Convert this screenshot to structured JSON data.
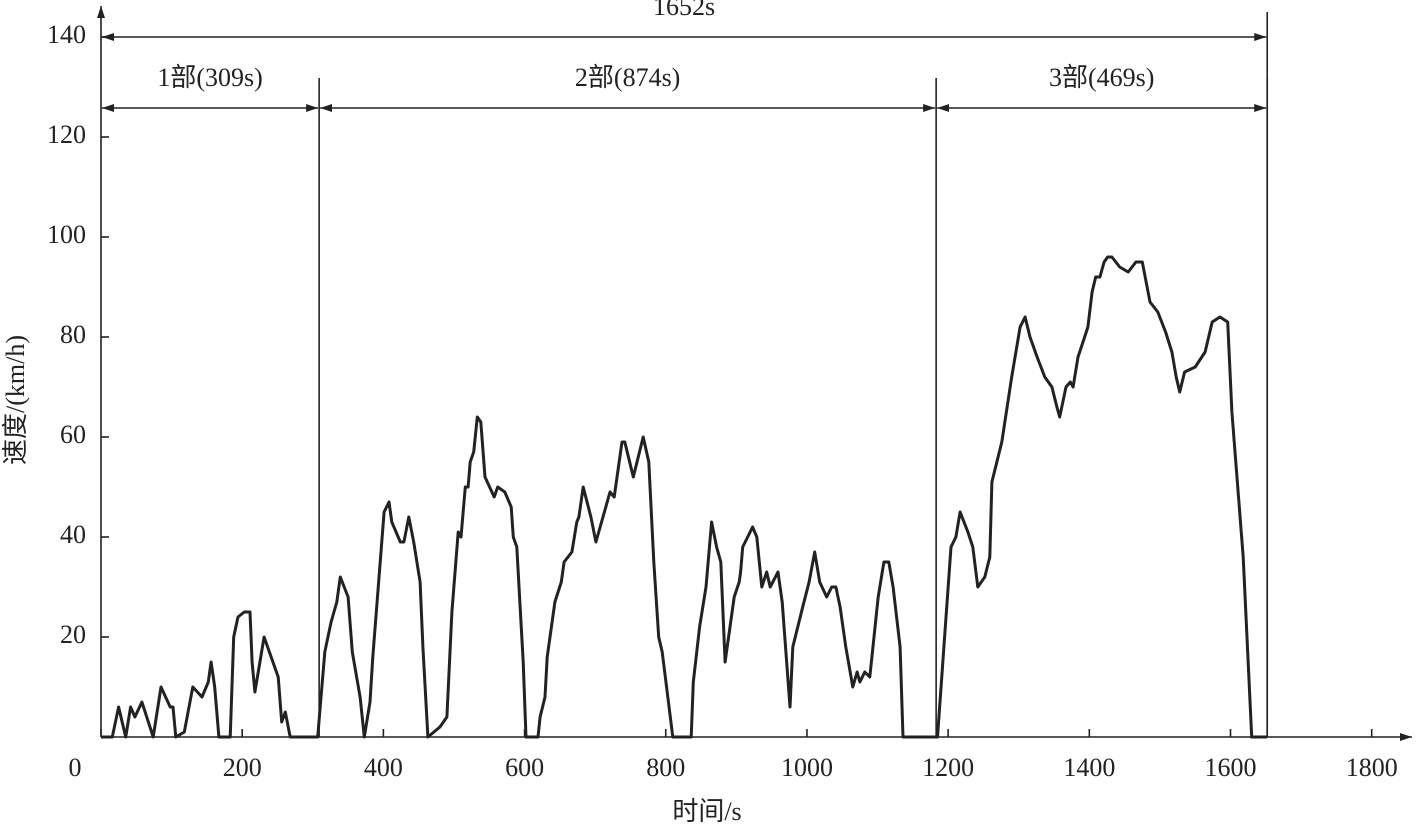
{
  "chart_data": {
    "type": "line",
    "xlabel": "时间/s",
    "ylabel": "速度/(km/h)",
    "xlim": [
      0,
      1850
    ],
    "ylim": [
      0,
      146
    ],
    "xticks": [
      0,
      200,
      400,
      600,
      800,
      1000,
      1200,
      1400,
      1600,
      1800
    ],
    "yticks": [
      20,
      40,
      60,
      80,
      100,
      120,
      140
    ],
    "color": "#222222",
    "total": {
      "label": "1652s",
      "start": 0,
      "end": 1652
    },
    "segments": [
      {
        "label": "1部(309s)",
        "start": 0,
        "end": 309
      },
      {
        "label": "2部(874s)",
        "start": 309,
        "end": 1183
      },
      {
        "label": "3部(469s)",
        "start": 1183,
        "end": 1652
      }
    ],
    "x": [
      0,
      16,
      25,
      35,
      42,
      48,
      58,
      74,
      85,
      98,
      102,
      106,
      118,
      130,
      143,
      152,
      156,
      161,
      167,
      183,
      188,
      194,
      203,
      211,
      214,
      218,
      231,
      251,
      256,
      261,
      268,
      307,
      317,
      326,
      334,
      339,
      350,
      356,
      367,
      373,
      381,
      385,
      401,
      408,
      412,
      424,
      429,
      436,
      443,
      452,
      456,
      463,
      480,
      490,
      497,
      506,
      510,
      516,
      520,
      523,
      528,
      533,
      538,
      544,
      557,
      562,
      572,
      581,
      584,
      589,
      598,
      602,
      619,
      622,
      629,
      632,
      643,
      652,
      656,
      667,
      674,
      677,
      683,
      694,
      701,
      715,
      721,
      727,
      738,
      742,
      754,
      768,
      776,
      783,
      790,
      795,
      810,
      836,
      839,
      848,
      857,
      865,
      872,
      878,
      884,
      897,
      904,
      906,
      909,
      923,
      929,
      936,
      943,
      948,
      959,
      965,
      976,
      980,
      994,
      1003,
      1011,
      1018,
      1028,
      1035,
      1041,
      1047,
      1055,
      1065,
      1071,
      1075,
      1082,
      1089,
      1101,
      1109,
      1116,
      1122,
      1132,
      1136,
      1174,
      1185,
      1195,
      1204,
      1211,
      1217,
      1228,
      1235,
      1242,
      1252,
      1259,
      1262,
      1276,
      1290,
      1302,
      1309,
      1316,
      1326,
      1337,
      1347,
      1354,
      1358,
      1367,
      1373,
      1377,
      1384,
      1391,
      1398,
      1404,
      1409,
      1415,
      1421,
      1426,
      1432,
      1443,
      1455,
      1466,
      1475,
      1486,
      1497,
      1508,
      1517,
      1523,
      1528,
      1535,
      1550,
      1564,
      1574,
      1585,
      1596,
      1602,
      1618,
      1630,
      1652
    ],
    "values": [
      0,
      0,
      6,
      0,
      6,
      4,
      7,
      0,
      10,
      6,
      6,
      0,
      1,
      10,
      8,
      11,
      15,
      10,
      0,
      0,
      20,
      24,
      25,
      25,
      15,
      9,
      20,
      12,
      3,
      5,
      0,
      0,
      17,
      23,
      27,
      32,
      28,
      17,
      8,
      0,
      7,
      16,
      45,
      47,
      43,
      39,
      39,
      44,
      39,
      31,
      18,
      0,
      2,
      4,
      25,
      41,
      40,
      50,
      50,
      55,
      57,
      64,
      63,
      52,
      48,
      50,
      49,
      46,
      40,
      38,
      15,
      0,
      0,
      4,
      8,
      16,
      27,
      31,
      35,
      37,
      43,
      44,
      50,
      44,
      39,
      46,
      49,
      48,
      59,
      59,
      52,
      60,
      55,
      35,
      20,
      17,
      0,
      0,
      11,
      22,
      30,
      43,
      38,
      35,
      15,
      28,
      31,
      33,
      38,
      42,
      40,
      30,
      33,
      30,
      33,
      27,
      6,
      18,
      26,
      31,
      37,
      31,
      28,
      30,
      30,
      26,
      18,
      10,
      13,
      11,
      13,
      12,
      28,
      35,
      35,
      30,
      18,
      0,
      0,
      0,
      20,
      38,
      40,
      45,
      41,
      38,
      30,
      32,
      36,
      51,
      59,
      72,
      82,
      84,
      80,
      76,
      72,
      70,
      66,
      64,
      70,
      71,
      70,
      76,
      79,
      82,
      89,
      92,
      92,
      95,
      96,
      96,
      94,
      93,
      95,
      95,
      87,
      85,
      81,
      77,
      72,
      69,
      73,
      74,
      77,
      83,
      84,
      83,
      65,
      36,
      0,
      0
    ]
  }
}
